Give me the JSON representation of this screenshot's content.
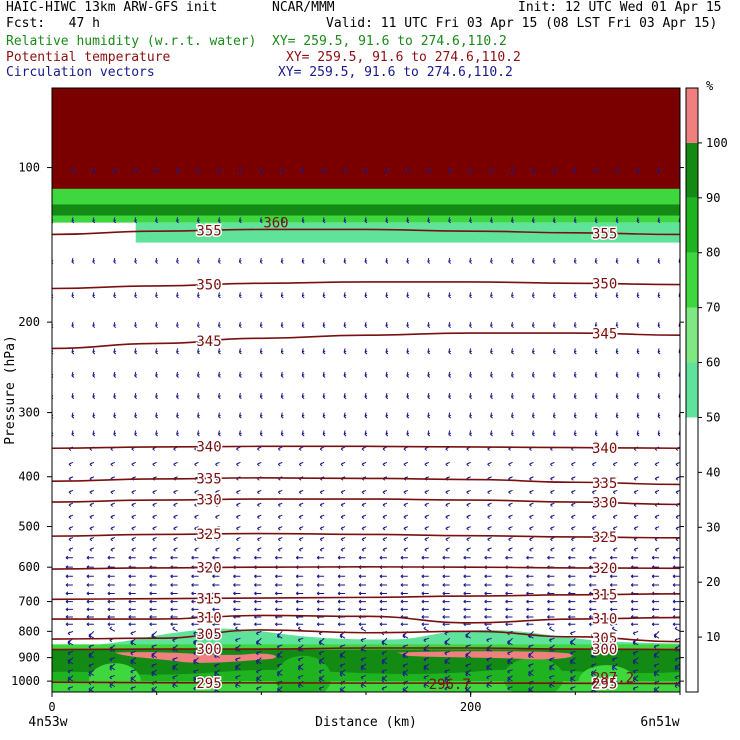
{
  "header": {
    "title_left": "HAIC-HIWC 13km ARW-GFS init",
    "org": "NCAR/MMM",
    "init": "Init: 12 UTC Wed 01 Apr 15",
    "fcst": "Fcst:   47 h",
    "valid": "Valid: 11 UTC Fri 03 Apr 15 (08 LST Fri 03 Apr 15)",
    "fields": [
      {
        "name": "Relative humidity (w.r.t. water)",
        "xy": "XY= 259.5, 91.6 to 274.6,110.2",
        "color": "#1a8a1a"
      },
      {
        "name": "Potential temperature",
        "xy": "XY= 259.5, 91.6 to 274.6,110.2",
        "color": "#8b1010"
      },
      {
        "name": "Circulation vectors",
        "xy": "XY= 259.5, 91.6 to 274.6,110.2",
        "color": "#1a1a8c"
      }
    ]
  },
  "colorbar": {
    "unit": "%",
    "ticks": [
      "10",
      "20",
      "30",
      "40",
      "50",
      "60",
      "70",
      "80",
      "90",
      "100"
    ],
    "bins": [
      {
        "from": 0,
        "to": 50,
        "color": "#ffffff"
      },
      {
        "from": 50,
        "to": 60,
        "color": "#5fe39b"
      },
      {
        "from": 60,
        "to": 70,
        "color": "#80e880"
      },
      {
        "from": 70,
        "to": 80,
        "color": "#3ed83e"
      },
      {
        "from": 80,
        "to": 90,
        "color": "#1fb41f"
      },
      {
        "from": 90,
        "to": 100,
        "color": "#138a13"
      },
      {
        "from": 100,
        "to": 110,
        "color": "#f08080"
      }
    ]
  },
  "chart_data": {
    "type": "cross-section",
    "xlabel": "Distance (km)",
    "ylabel": "Pressure (hPa)",
    "x_ticks": [
      "0",
      "200"
    ],
    "x_range": [
      0,
      300
    ],
    "y_range_hPa": [
      1050,
      70
    ],
    "y_ticks": [
      "100",
      "200",
      "300",
      "400",
      "500",
      "600",
      "700",
      "800",
      "900",
      "1000"
    ],
    "endpoint_left": "4n53w",
    "endpoint_right": "6n51w",
    "theta_contours": [
      {
        "label": "355",
        "p": [
          135,
          133,
          132,
          132,
          133,
          134,
          135
        ]
      },
      {
        "label": "350",
        "p": [
          172,
          170,
          168,
          167,
          167,
          168,
          169
        ]
      },
      {
        "label": "345",
        "p": [
          225,
          220,
          215,
          212,
          210,
          210,
          212
        ]
      },
      {
        "label": "340",
        "p": [
          352,
          350,
          349,
          349,
          350,
          351,
          352
        ]
      },
      {
        "label": "335",
        "p": [
          408,
          404,
          402,
          403,
          405,
          410,
          414
        ]
      },
      {
        "label": "330",
        "p": [
          448,
          444,
          442,
          442,
          444,
          448,
          453
        ]
      },
      {
        "label": "325",
        "p": [
          522,
          518,
          516,
          518,
          521,
          524,
          526
        ]
      },
      {
        "label": "320",
        "p": [
          605,
          602,
          600,
          599,
          600,
          602,
          603
        ]
      },
      {
        "label": "315",
        "p": [
          693,
          691,
          689,
          687,
          683,
          679,
          676
        ]
      },
      {
        "label": "310",
        "p": [
          757,
          757,
          745,
          748,
          770,
          757,
          752
        ]
      },
      {
        "label": "305",
        "p": [
          828,
          825,
          795,
          805,
          800,
          820,
          838
        ]
      },
      {
        "label": "300",
        "p": [
          868,
          866,
          866,
          862,
          862,
          866,
          868
        ]
      },
      {
        "label": "295",
        "p": [
          1005,
          1007,
          1008,
          1009,
          1009,
          1010,
          1011
        ]
      }
    ],
    "theta_x_km": [
      0,
      50,
      100,
      150,
      200,
      250,
      300
    ],
    "extra_labels": [
      "360",
      "296.7",
      "297.2"
    ],
    "rh_note": "Band near tropopause >100%; boundary layer below ~830 hPa 70-100% with >100% pockets near 880-920 hPa"
  }
}
